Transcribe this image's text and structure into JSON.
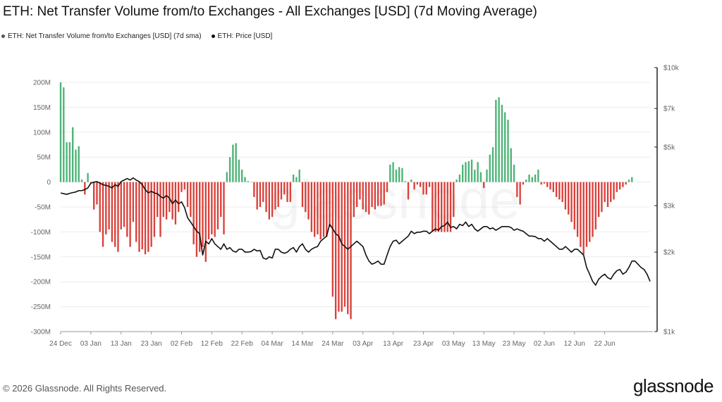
{
  "chart_data": {
    "type": "bar+line",
    "title": "ETH: Net Transfer Volume from/to Exchanges - All Exchanges [USD] (7d Moving Average)",
    "legend": [
      {
        "label": "ETH: Net Transfer Volume from/to Exchanges [USD] (7d sma)",
        "color": "#555555"
      },
      {
        "label": "ETH: Price [USD]",
        "color": "#111111"
      }
    ],
    "positive_color": "#4db376",
    "negative_color": "#d9413b",
    "price_color": "#111111",
    "left_axis": {
      "ticks": [
        200,
        150,
        100,
        50,
        0,
        -50,
        -100,
        -150,
        -200,
        -250,
        -300
      ],
      "tick_labels": [
        "200M",
        "150M",
        "100M",
        "50M",
        "0",
        "-50M",
        "-100M",
        "-150M",
        "-200M",
        "-250M",
        "-300M"
      ],
      "ylim": [
        -300,
        200
      ],
      "unit": "M USD"
    },
    "right_axis": {
      "scale": "log",
      "ticks": [
        10000,
        7000,
        5000,
        3000,
        2000,
        1000
      ],
      "tick_labels": [
        "$10k",
        "$7k",
        "$5k",
        "$3k",
        "$2k",
        "$1k"
      ],
      "ylim": [
        1000,
        10000
      ]
    },
    "x_ticks": [
      "24 Dec",
      "03 Jan",
      "13 Jan",
      "23 Jan",
      "02 Feb",
      "12 Feb",
      "22 Feb",
      "04 Mar",
      "14 Mar",
      "24 Mar",
      "03 Apr",
      "13 Apr",
      "23 Apr",
      "03 May",
      "13 May",
      "23 May",
      "02 Jun",
      "12 Jun",
      "22 Jun"
    ],
    "x_start": "2024-12-24",
    "net_volume_musd": [
      200,
      190,
      80,
      80,
      110,
      65,
      72,
      5,
      -25,
      18,
      -2,
      -55,
      -45,
      -100,
      -130,
      -105,
      -95,
      -120,
      -130,
      -140,
      -95,
      -90,
      -110,
      -130,
      -80,
      -120,
      -140,
      -135,
      -145,
      -140,
      -130,
      -110,
      -70,
      -110,
      -70,
      -75,
      -60,
      -75,
      -85,
      -60,
      -20,
      -15,
      -50,
      -70,
      -125,
      -150,
      -140,
      -130,
      -160,
      -115,
      -105,
      -110,
      -95,
      -70,
      -105,
      20,
      50,
      75,
      78,
      45,
      25,
      10,
      2,
      0,
      -30,
      -55,
      -50,
      -40,
      -60,
      -75,
      -70,
      -55,
      -50,
      -35,
      -25,
      -40,
      -40,
      15,
      10,
      25,
      -50,
      -60,
      -75,
      -100,
      -110,
      -105,
      -115,
      -110,
      -110,
      -90,
      -230,
      -275,
      -260,
      -260,
      -250,
      -265,
      -275,
      -70,
      -50,
      -35,
      -55,
      -60,
      -65,
      -50,
      -55,
      -48,
      -48,
      -45,
      -20,
      35,
      40,
      25,
      30,
      28,
      2,
      -35,
      5,
      -15,
      -5,
      -10,
      -25,
      -25,
      -10,
      -100,
      -100,
      -100,
      -100,
      -100,
      -100,
      -100,
      -70,
      5,
      15,
      35,
      40,
      42,
      45,
      25,
      40,
      20,
      -12,
      25,
      55,
      70,
      165,
      170,
      155,
      140,
      125,
      68,
      35,
      -30,
      -45,
      -5,
      5,
      15,
      10,
      15,
      25,
      -5,
      -3,
      -10,
      -15,
      -20,
      -30,
      -35,
      -40,
      -55,
      -65,
      -80,
      -95,
      -110,
      -130,
      -145,
      -130,
      -120,
      -110,
      -95,
      -70,
      -60,
      -40,
      -50,
      -40,
      -35,
      -20,
      -15,
      -10,
      -5,
      5,
      10
    ],
    "price_usd": [
      3350,
      3330,
      3310,
      3340,
      3360,
      3380,
      3420,
      3420,
      3450,
      3500,
      3650,
      3680,
      3700,
      3650,
      3600,
      3580,
      3550,
      3500,
      3600,
      3550,
      3700,
      3750,
      3800,
      3750,
      3820,
      3750,
      3700,
      3600,
      3450,
      3350,
      3400,
      3350,
      3330,
      3250,
      3200,
      3280,
      3200,
      3050,
      3150,
      3050,
      3100,
      2950,
      2700,
      2600,
      2500,
      2400,
      2350,
      1950,
      2200,
      2150,
      2250,
      2150,
      2100,
      2050,
      2150,
      2050,
      2080,
      2020,
      2000,
      2050,
      2050,
      2000,
      2000,
      2010,
      2050,
      2020,
      2030,
      1900,
      1880,
      1920,
      1900,
      2050,
      2050,
      2000,
      1980,
      2000,
      2050,
      2080,
      2000,
      2100,
      2150,
      2050,
      2000,
      2050,
      2080,
      2100,
      2200,
      2250,
      2300,
      2550,
      2450,
      2350,
      2300,
      2150,
      2100,
      2050,
      2100,
      2150,
      2200,
      2150,
      2100,
      1950,
      1850,
      1800,
      1820,
      1850,
      1800,
      1800,
      1950,
      2100,
      2200,
      2220,
      2150,
      2200,
      2250,
      2300,
      2400,
      2350,
      2380,
      2380,
      2400,
      2400,
      2350,
      2400,
      2450,
      2420,
      2500,
      2520,
      2600,
      2480,
      2500,
      2450,
      2550,
      2520,
      2600,
      2500,
      2550,
      2450,
      2400,
      2450,
      2500,
      2500,
      2450,
      2470,
      2420,
      2460,
      2500,
      2500,
      2500,
      2480,
      2420,
      2450,
      2420,
      2400,
      2350,
      2300,
      2300,
      2290,
      2250,
      2250,
      2200,
      2250,
      2200,
      2150,
      2100,
      2050,
      2050,
      2100,
      2050,
      2000,
      2050,
      2050,
      2000,
      1950,
      1750,
      1650,
      1550,
      1500,
      1580,
      1620,
      1650,
      1600,
      1580,
      1650,
      1700,
      1720,
      1650,
      1680,
      1750,
      1850,
      1850,
      1800,
      1750,
      1720,
      1650,
      1550
    ]
  },
  "footer": {
    "copyright": "© 2026 Glassnode. All Rights Reserved.",
    "logo": "glassnode"
  },
  "watermark": "glassnode"
}
